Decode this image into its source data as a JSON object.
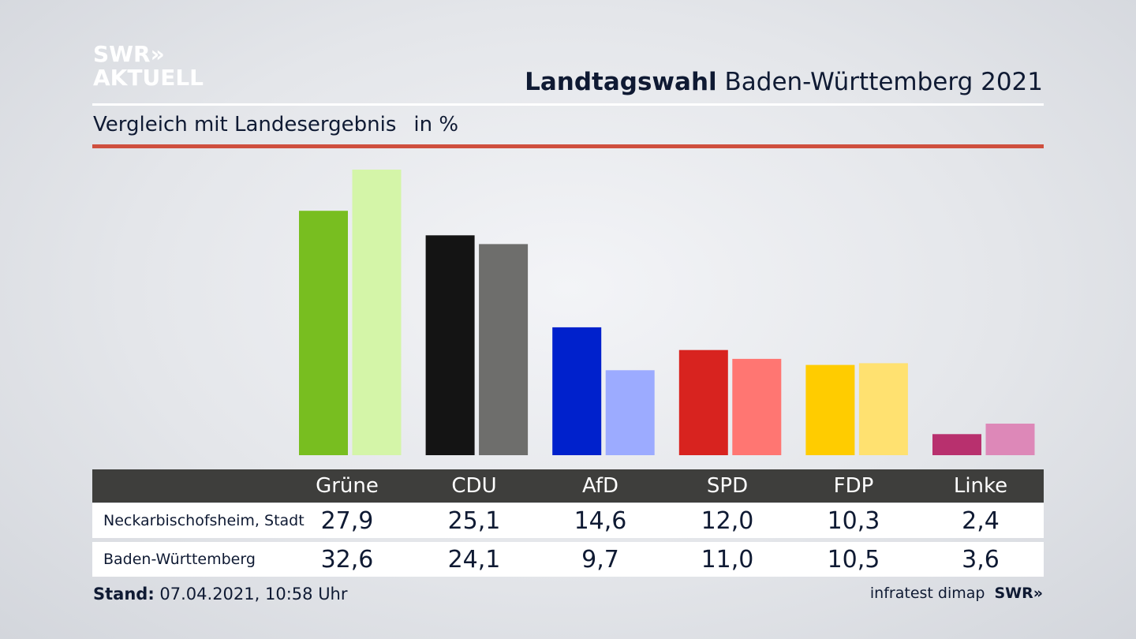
{
  "logo": {
    "line1": "SWR»",
    "line2": "AKTUELL"
  },
  "header": {
    "title_bold": "Landtagswahl",
    "title_rest": "Baden-Württemberg 2021"
  },
  "subtitle": {
    "text": "Vergleich mit Landesergebnis",
    "unit": "in %"
  },
  "colors": {
    "accent_rule": "#cf4f3e",
    "table_header": "#3e3e3c"
  },
  "chart_data": {
    "type": "bar",
    "categories": [
      "Grüne",
      "CDU",
      "AfD",
      "SPD",
      "FDP",
      "Linke"
    ],
    "series": [
      {
        "name": "Neckarbischofsheim, Stadt",
        "values": [
          27.9,
          25.1,
          14.6,
          12.0,
          10.3,
          2.4
        ],
        "colors": [
          "#78be20",
          "#141414",
          "#0021cc",
          "#d8231f",
          "#ffcc00",
          "#b8306e"
        ]
      },
      {
        "name": "Baden-Württemberg",
        "values": [
          32.6,
          24.1,
          9.7,
          11.0,
          10.5,
          3.6
        ],
        "colors": [
          "#d4f5a8",
          "#6e6e6c",
          "#9cabff",
          "#ff7672",
          "#ffe170",
          "#dd88b8"
        ]
      }
    ],
    "ylim": [
      0,
      32.6
    ]
  },
  "table": {
    "headers": [
      "Grüne",
      "CDU",
      "AfD",
      "SPD",
      "FDP",
      "Linke"
    ],
    "rows": [
      {
        "label": "Neckarbischofsheim, Stadt",
        "values": [
          "27,9",
          "25,1",
          "14,6",
          "12,0",
          "10,3",
          "2,4"
        ]
      },
      {
        "label": "Baden-Württemberg",
        "values": [
          "32,6",
          "24,1",
          "9,7",
          "11,0",
          "10,5",
          "3,6"
        ]
      }
    ]
  },
  "footer": {
    "stand_label": "Stand:",
    "stand_value": "07.04.2021, 10:58 Uhr",
    "source": "infratest dimap",
    "brand": "SWR»"
  }
}
